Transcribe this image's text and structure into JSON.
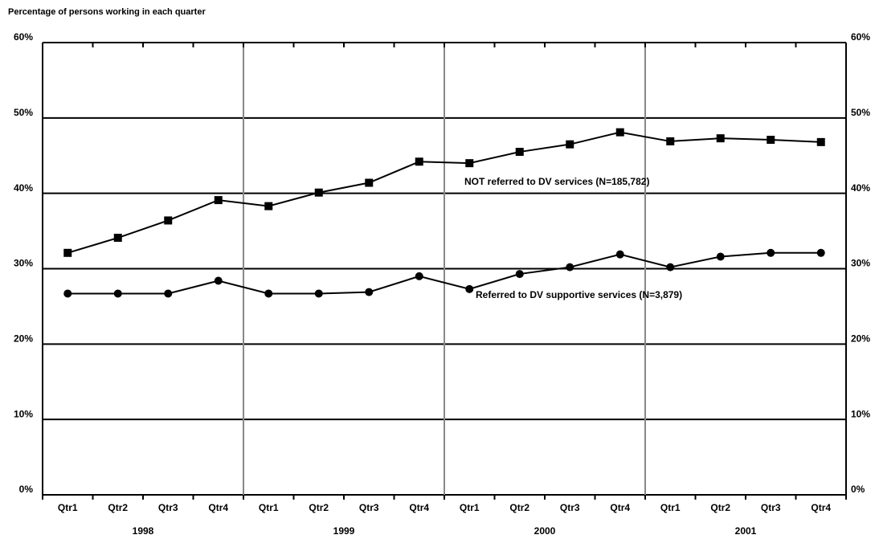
{
  "chart_data": {
    "type": "line",
    "title": "Percentage of persons working in each quarter",
    "categories": [
      "Qtr1",
      "Qtr2",
      "Qtr3",
      "Qtr4",
      "Qtr1",
      "Qtr2",
      "Qtr3",
      "Qtr4",
      "Qtr1",
      "Qtr2",
      "Qtr3",
      "Qtr4",
      "Qtr1",
      "Qtr2",
      "Qtr3",
      "Qtr4"
    ],
    "year_labels": [
      "1998",
      "1999",
      "2000",
      "2001"
    ],
    "series": [
      {
        "name": "NOT referred to DV services (N=185,782)",
        "color": "#000000",
        "marker": "square",
        "values": [
          32.1,
          34.1,
          36.4,
          39.1,
          38.3,
          40.1,
          41.4,
          44.2,
          44.0,
          45.5,
          46.5,
          48.1,
          46.9,
          47.3,
          47.1,
          46.8
        ]
      },
      {
        "name": "Referred to DV supportive services (N=3,879)",
        "color": "#000000",
        "marker": "circle",
        "values": [
          26.7,
          26.7,
          26.7,
          28.4,
          26.7,
          26.7,
          26.9,
          29.0,
          27.3,
          29.3,
          30.2,
          31.9,
          30.2,
          31.6,
          32.1,
          32.1
        ]
      }
    ],
    "ylim": [
      0,
      60
    ],
    "yticks": [
      {
        "value": 0,
        "label": "0%"
      },
      {
        "value": 10,
        "label": "10%"
      },
      {
        "value": 20,
        "label": "20%"
      },
      {
        "value": 30,
        "label": "30%"
      },
      {
        "value": 40,
        "label": "40%"
      },
      {
        "value": 50,
        "label": "50%"
      },
      {
        "value": 60,
        "label": "60%"
      }
    ],
    "grid": true
  }
}
